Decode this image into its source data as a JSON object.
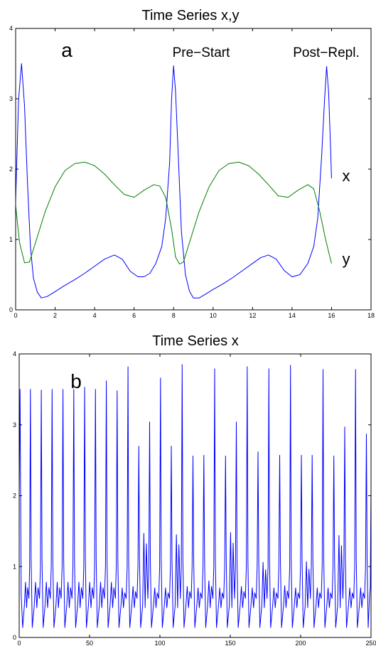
{
  "chart_data": [
    {
      "type": "line",
      "title": "Time Series x,y",
      "xlim": [
        0,
        18
      ],
      "ylim": [
        0,
        4
      ],
      "xticks": [
        0,
        2,
        4,
        6,
        8,
        10,
        12,
        14,
        16,
        18
      ],
      "yticks": [
        0,
        1,
        2,
        3,
        4
      ],
      "grid": false,
      "series": [
        {
          "name": "x",
          "color": "#0000ff",
          "x": [
            0,
            0.15,
            0.3,
            0.45,
            0.6,
            0.75,
            0.9,
            1.1,
            1.3,
            1.6,
            2.0,
            2.5,
            3.0,
            3.5,
            4.0,
            4.5,
            5.0,
            5.4,
            5.8,
            6.2,
            6.5,
            6.8,
            7.1,
            7.4,
            7.6,
            7.8,
            7.9,
            8.0,
            8.1,
            8.25,
            8.4,
            8.6,
            8.8,
            9.0,
            9.3,
            9.6,
            10.0,
            10.5,
            11.0,
            11.5,
            12.0,
            12.4,
            12.8,
            13.2,
            13.6,
            14.0,
            14.4,
            14.8,
            15.1,
            15.3,
            15.5,
            15.65,
            15.75,
            15.85,
            15.95,
            16.0
          ],
          "y": [
            1.55,
            3.0,
            3.5,
            2.9,
            1.8,
            0.9,
            0.45,
            0.25,
            0.17,
            0.19,
            0.26,
            0.35,
            0.43,
            0.52,
            0.62,
            0.72,
            0.78,
            0.72,
            0.55,
            0.47,
            0.47,
            0.52,
            0.66,
            0.9,
            1.3,
            2.1,
            3.0,
            3.47,
            3.1,
            2.1,
            1.1,
            0.5,
            0.27,
            0.17,
            0.17,
            0.22,
            0.29,
            0.37,
            0.46,
            0.56,
            0.66,
            0.74,
            0.78,
            0.72,
            0.56,
            0.47,
            0.5,
            0.66,
            0.9,
            1.3,
            2.2,
            3.0,
            3.46,
            3.1,
            2.3,
            1.87
          ]
        },
        {
          "name": "y",
          "color": "#007f00",
          "x": [
            0,
            0.2,
            0.45,
            0.7,
            1.0,
            1.5,
            2.0,
            2.5,
            3.0,
            3.5,
            4.0,
            4.5,
            5.0,
            5.5,
            6.0,
            6.5,
            7.0,
            7.3,
            7.6,
            7.9,
            8.1,
            8.3,
            8.5,
            8.8,
            9.3,
            9.8,
            10.3,
            10.8,
            11.3,
            11.8,
            12.3,
            12.8,
            13.3,
            13.8,
            14.3,
            14.8,
            15.1,
            15.4,
            15.7,
            16.0
          ],
          "y": [
            1.48,
            0.95,
            0.67,
            0.68,
            0.95,
            1.4,
            1.75,
            1.98,
            2.08,
            2.1,
            2.05,
            1.93,
            1.78,
            1.64,
            1.6,
            1.7,
            1.78,
            1.76,
            1.6,
            1.15,
            0.75,
            0.65,
            0.68,
            0.95,
            1.4,
            1.75,
            1.98,
            2.08,
            2.1,
            2.05,
            1.93,
            1.78,
            1.62,
            1.6,
            1.7,
            1.78,
            1.72,
            1.4,
            1.0,
            0.66
          ]
        }
      ],
      "annotations": [
        {
          "text": "a",
          "x": 3.6,
          "y": 3.6
        },
        {
          "text": "Pre−Start",
          "x": 8.6,
          "y": 3.6
        },
        {
          "text": "Post−Repl.",
          "x": 14.0,
          "y": 3.6
        },
        {
          "text": "x",
          "x": 16.8,
          "y": 2.0
        },
        {
          "text": "y",
          "x": 16.8,
          "y": 0.7
        }
      ]
    },
    {
      "type": "line",
      "title": "Time Series x",
      "xlim": [
        0,
        250
      ],
      "ylim": [
        0,
        4
      ],
      "xticks": [
        0,
        50,
        100,
        150,
        200,
        250
      ],
      "yticks": [
        0,
        1,
        2,
        3,
        4
      ],
      "grid": false,
      "series": [
        {
          "name": "x",
          "color": "#0000ff",
          "spike_x": [
            8,
            15.7,
            23.4,
            31.1,
            38.8,
            46.5,
            54.2,
            61.9,
            69.6,
            77.3,
            85,
            92.7,
            100.4,
            108.1,
            115.8,
            123.5,
            131.2,
            138.9,
            146.6,
            154.3,
            162,
            169.7,
            177.4,
            185.1,
            192.8,
            200.5,
            208.2,
            215.9,
            223.6,
            231.3,
            239,
            246.7
          ],
          "spike_y": [
            3.5,
            3.49,
            3.5,
            3.5,
            3.5,
            3.53,
            3.5,
            3.62,
            3.48,
            3.82,
            2.7,
            3.04,
            3.66,
            2.7,
            3.85,
            2.56,
            2.57,
            3.79,
            2.56,
            3.04,
            3.82,
            2.62,
            3.79,
            2.57,
            3.84,
            2.57,
            2.57,
            3.78,
            2.56,
            2.97,
            3.78,
            2.87
          ],
          "mid_peak_y": [
            0.78,
            0.78,
            0.78,
            0.78,
            0.78,
            0.78,
            0.78,
            0.78,
            0.78,
            0.7,
            0.72,
            1.47,
            0.7,
            0.7,
            1.45,
            0.72,
            0.7,
            0.8,
            0.7,
            1.48,
            0.72,
            0.7,
            1.06,
            0.7,
            0.73,
            0.7,
            1.07,
            0.7,
            0.7,
            1.44,
            0.7,
            0.7
          ],
          "trough_y": 0.14,
          "end": {
            "x": 250,
            "y": 2.1
          }
        }
      ],
      "annotations": [
        {
          "text": "b",
          "x": 40,
          "y": 3.6
        }
      ]
    }
  ]
}
